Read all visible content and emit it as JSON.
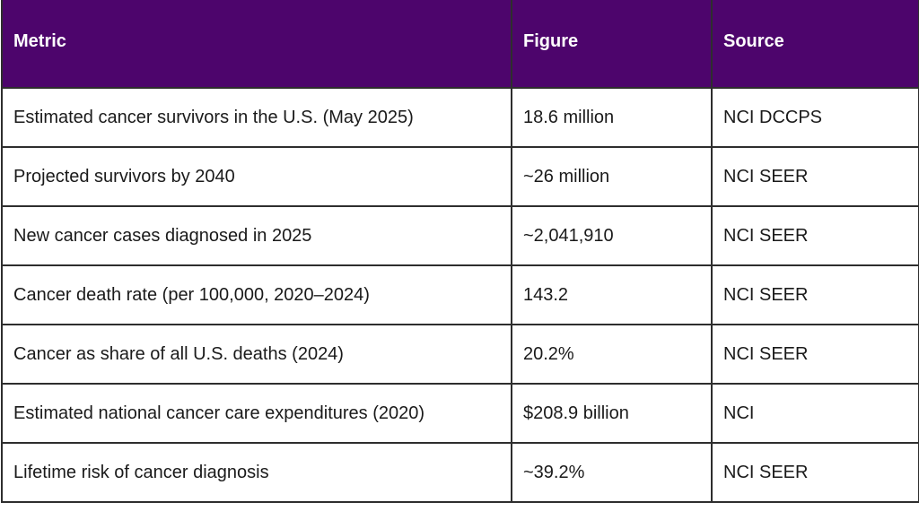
{
  "colors": {
    "header_background": "#4d056c",
    "header_text": "#ffffff",
    "border": "#2e2e2e",
    "body_text": "#1a1a1a"
  },
  "table": {
    "headers": [
      "Metric",
      "Figure",
      "Source"
    ],
    "rows": [
      [
        "Estimated cancer survivors in the U.S. (May 2025)",
        "18.6 million",
        "NCI DCCPS"
      ],
      [
        "Projected survivors by 2040",
        "~26 million",
        "NCI SEER"
      ],
      [
        "New cancer cases diagnosed in 2025",
        "~2,041,910",
        "NCI SEER"
      ],
      [
        "Cancer death rate (per 100,000, 2020–2024)",
        "143.2",
        "NCI SEER"
      ],
      [
        "Cancer as share of all U.S. deaths (2024)",
        "20.2%",
        "NCI SEER"
      ],
      [
        "Estimated national cancer care expenditures (2020)",
        "$208.9 billion",
        "NCI"
      ],
      [
        "Lifetime risk of cancer diagnosis",
        "~39.2%",
        "NCI SEER"
      ]
    ]
  }
}
